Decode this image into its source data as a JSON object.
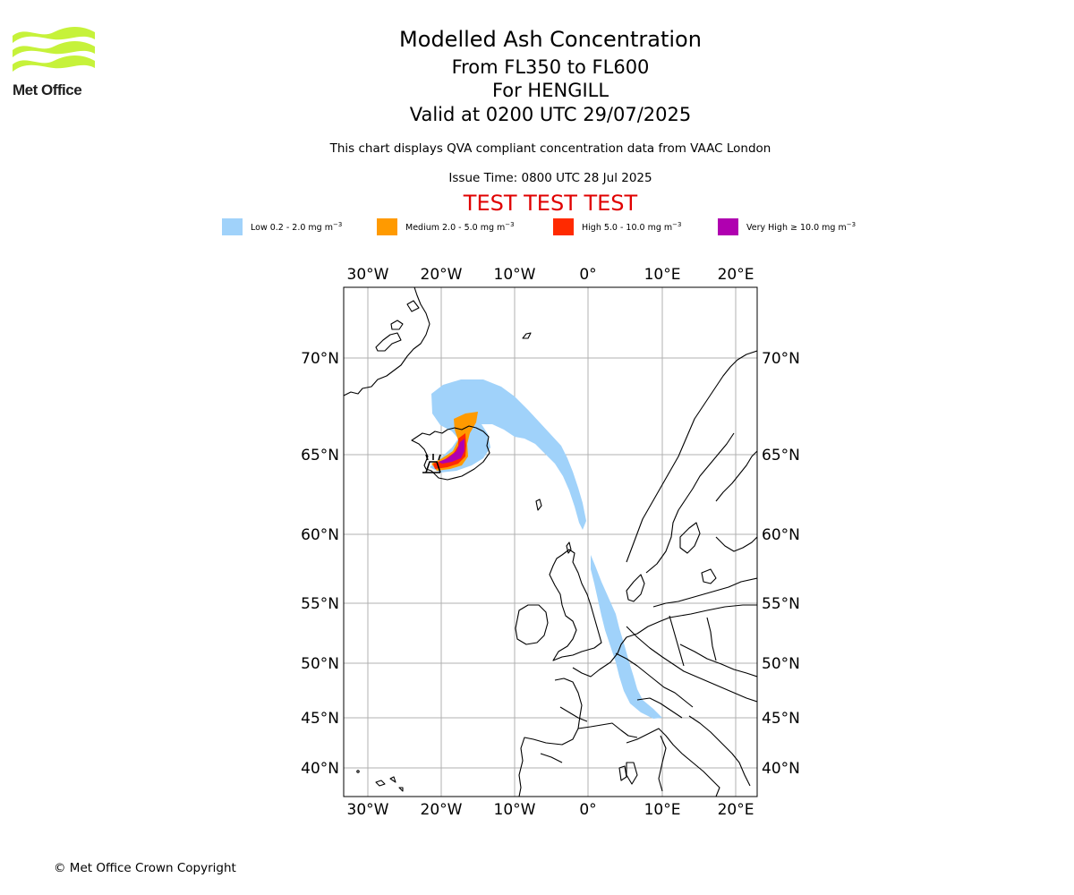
{
  "header": {
    "logo_text": "Met Office",
    "title": "Modelled Ash Concentration",
    "levels": "From FL350 to FL600",
    "volcano": "For HENGILL",
    "valid": "Valid at 0200 UTC 29/07/2025",
    "description": "This chart displays QVA compliant concentration data from VAAC London",
    "issue_time": "Issue Time: 0800 UTC 28 Jul 2025",
    "test_banner": "TEST TEST TEST"
  },
  "legend": [
    {
      "label": "Low 0.2 - 2.0 mg m",
      "exp": "−3",
      "color": "#a0d2fa"
    },
    {
      "label": "Medium 2.0 - 5.0 mg m",
      "exp": "−3",
      "color": "#ff9a00"
    },
    {
      "label": "High 5.0 - 10.0 mg m",
      "exp": "−3",
      "color": "#ff2a00"
    },
    {
      "label": "Very High  ≥  10.0 mg m",
      "exp": "−3",
      "color": "#b000b0"
    }
  ],
  "map": {
    "lon_labels": [
      "30°W",
      "20°W",
      "10°W",
      "0°",
      "10°E",
      "20°E"
    ],
    "lat_labels": [
      "70°N",
      "65°N",
      "60°N",
      "55°N",
      "50°N",
      "45°N",
      "40°N"
    ],
    "gridlines": true,
    "coastline_color": "#000000",
    "grid_color": "#b0b0b0",
    "volcano_marker": "hengill-volcano-icon"
  },
  "footer": {
    "copyright": "© Met Office Crown Copyright"
  }
}
